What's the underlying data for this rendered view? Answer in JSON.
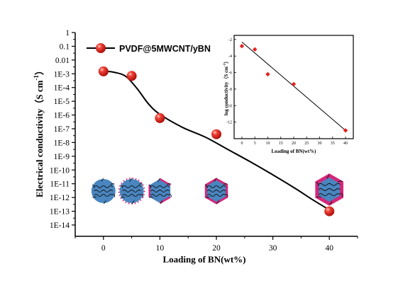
{
  "chart_data": [
    {
      "type": "scatter",
      "panel": "main",
      "xlabel": "Loading of BN(wt%)",
      "ylabel": "Electrical conductivity（S cm",
      "ylabel_superscript": "-1",
      "ylabel_close": "）",
      "y_scale": "log",
      "xlim": [
        -5,
        45
      ],
      "ylim_exp": [
        -14.9,
        0
      ],
      "x_ticks": [
        0,
        10,
        20,
        30,
        40
      ],
      "y_ticks": [
        "1",
        "0.1",
        "0.01",
        "1E-3",
        "1E-4",
        "1E-5",
        "1E-6",
        "1E-7",
        "1E-8",
        "1E-9",
        "1E-10",
        "1E-11",
        "1E-12",
        "1E-13",
        "1E-14"
      ],
      "legend": "top-left",
      "series": [
        {
          "name": "PVDF@5MWCNT/yBN",
          "x": [
            0,
            5,
            10,
            20,
            40
          ],
          "y": [
            0.0015,
            0.0007,
            6e-07,
            4e-08,
            1e-13
          ]
        }
      ],
      "fit_curve": {
        "x": [
          0,
          2,
          4,
          6,
          8,
          10,
          14,
          18,
          22,
          26,
          30,
          34,
          37,
          40
        ],
        "y_exp": [
          -2.8,
          -2.9,
          -3.2,
          -4.1,
          -5.2,
          -5.95,
          -6.9,
          -7.6,
          -8.5,
          -9.4,
          -10.35,
          -11.35,
          -12.15,
          -12.9
        ]
      },
      "grid": false
    },
    {
      "type": "scatter",
      "panel": "inset",
      "xlabel": "Loading of BN(wt%)",
      "ylabel": "log conductivity（S cm",
      "ylabel_superscript": "-1",
      "ylabel_close": "）",
      "xlim": [
        -3,
        43
      ],
      "ylim": [
        -14,
        -1.5
      ],
      "x_ticks": [
        0,
        5,
        10,
        15,
        20,
        25,
        30,
        35,
        40
      ],
      "y_ticks": [
        -2,
        -4,
        -6,
        -8,
        -10,
        -12
      ],
      "series": [
        {
          "x": [
            0,
            5,
            10,
            20,
            40
          ],
          "y": [
            -2.8,
            -3.2,
            -6.2,
            -7.4,
            -13.0
          ]
        }
      ],
      "fit_line": {
        "x": [
          0,
          40
        ],
        "y": [
          -2.3,
          -13.0
        ]
      }
    }
  ],
  "illustrations": {
    "particle_fill": "#4a86c0",
    "bn_color": "#d2287a",
    "particles": [
      {
        "x": 0,
        "shape": "circle",
        "bn_coverage": "none"
      },
      {
        "x": 5,
        "shape": "circle",
        "bn_coverage": "dotted"
      },
      {
        "x": 10,
        "shape": "hexagon",
        "bn_coverage": "partial"
      },
      {
        "x": 20,
        "shape": "hexagon",
        "bn_coverage": "full"
      },
      {
        "x": 40,
        "shape": "hexagon",
        "bn_coverage": "thick"
      }
    ]
  },
  "colors": {
    "marker_red": "#e8201c",
    "marker_highlight": "#ffb0a8",
    "inset_marker": "#e8201c",
    "axis": "#000000"
  }
}
